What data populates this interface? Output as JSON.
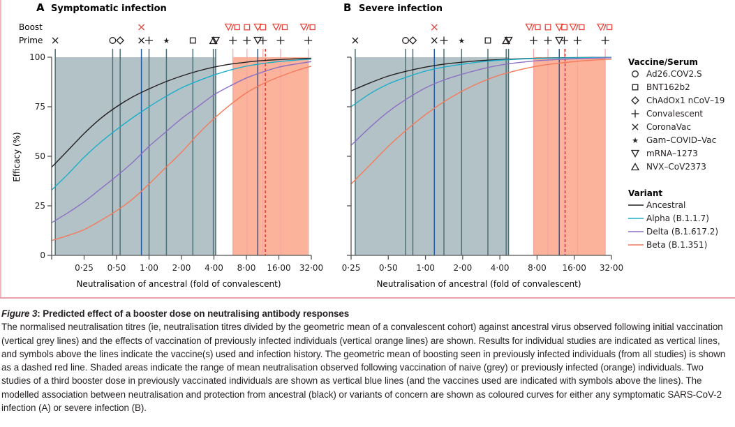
{
  "figure": {
    "caption_label": "Figure 3",
    "caption_title": ": Predicted effect of a booster dose on neutralising antibody responses",
    "caption_body": "The normalised neutralisation titres (ie, neutralisation titres divided by the geometric mean of a convalescent cohort) against ancestral virus observed following initial vaccination (vertical grey lines) and the effects of vaccination of previously infected individuals (vertical orange lines) are shown. Results for individual studies are indicated as vertical lines, and symbols above the lines indicate the vaccine(s) used and infection history. The geometric mean of boosting seen in previously infected individuals (from all studies) is shown as a dashed red line. Shaded areas indicate the range of mean neutralisation observed following vaccination of naive (grey) or previously infected (orange) individuals. Two studies of a third booster dose in previously vaccinated individuals are shown as vertical blue lines (and the vaccines used are indicated with symbols above the lines). The modelled association between neutralisation and protection from ancestral (black) or variants of concern are shown as coloured curves for either any symptomatic SARS-CoV-2 infection (A) or severe infection (B)."
  },
  "colors": {
    "ancestral": "#231f20",
    "alpha": "#1aaec9",
    "delta": "#8c6fc4",
    "beta": "#f47a5a",
    "grey_band": "#b3c2c6",
    "grey_line": "#4d6f78",
    "orange_band": "#fbb39c",
    "orange_line": "#f6a3a3",
    "blue_line": "#1f5aa6",
    "dashed_red": "#e8433a",
    "boost_symbol": "#e8433a"
  },
  "symbol_rows": {
    "boost_label": "Boost",
    "prime_label": "Prime"
  },
  "legend": {
    "vaccine_title": "Vaccine/Serum",
    "vaccines": [
      {
        "symbol": "circle",
        "label": "Ad26.COV2.S"
      },
      {
        "symbol": "square",
        "label": "BNT162b2"
      },
      {
        "symbol": "diamond",
        "label": "ChAdOx1 nCoV–19"
      },
      {
        "symbol": "plus",
        "label": "Convalescent"
      },
      {
        "symbol": "cross",
        "label": "CoronaVac"
      },
      {
        "symbol": "star",
        "label": "Gam–COVID–Vac"
      },
      {
        "symbol": "triangle-down",
        "label": "mRNA–1273"
      },
      {
        "symbol": "triangle-up",
        "label": "NVX–CoV2373"
      }
    ],
    "variant_title": "Variant",
    "variants": [
      {
        "key": "ancestral",
        "label": "Ancestral"
      },
      {
        "key": "alpha",
        "label": "Alpha (B.1.1.7)"
      },
      {
        "key": "delta",
        "label": "Delta (B.1.617.2)"
      },
      {
        "key": "beta",
        "label": "Beta (B.1.351)"
      }
    ]
  },
  "chart_data": [
    {
      "type": "line",
      "panel": "A",
      "title": "Symptomatic infection",
      "xlabel": "Neutralisation of ancestral (fold of convalescent)",
      "ylabel": "Efficacy (%)",
      "x_scale": "log2",
      "xlim": [
        0.125,
        32
      ],
      "ylim": [
        0,
        100
      ],
      "x_ticks": [
        0.25,
        0.5,
        1,
        2,
        4,
        8,
        16,
        32
      ],
      "x_tick_labels": [
        "0·25",
        "0·50",
        "1·00",
        "2·00",
        "4·00",
        "8·00",
        "16·00",
        "32·00"
      ],
      "y_ticks": [
        0,
        25,
        50,
        75,
        100
      ],
      "y_tick_labels": [
        "0",
        "25",
        "50",
        "75",
        "100"
      ],
      "grey_band": [
        0.135,
        4.2
      ],
      "orange_band": [
        6.0,
        30.0
      ],
      "dashed_mean": 12.0,
      "series": [
        {
          "name": "Ancestral",
          "key": "ancestral",
          "x": [
            0.125,
            0.177,
            0.25,
            0.354,
            0.5,
            0.707,
            1,
            1.41,
            2,
            2.83,
            4,
            5.66,
            8,
            11.3,
            16,
            22.6,
            32
          ],
          "values": [
            44.5,
            53,
            61.5,
            69,
            75,
            80,
            84,
            87.5,
            90.5,
            93,
            95,
            96.5,
            97.5,
            98.3,
            98.8,
            99.2,
            99.5
          ]
        },
        {
          "name": "Alpha (B.1.1.7)",
          "key": "alpha",
          "x": [
            0.125,
            0.177,
            0.25,
            0.354,
            0.5,
            0.707,
            1,
            1.41,
            2,
            2.83,
            4,
            5.66,
            8,
            11.3,
            16,
            22.6,
            32
          ],
          "values": [
            33,
            41,
            49.5,
            57,
            63.5,
            69.5,
            75,
            80,
            84.5,
            88,
            91,
            93.5,
            95.5,
            96.8,
            97.8,
            98.5,
            99
          ]
        },
        {
          "name": "Delta (B.1.617.2)",
          "key": "delta",
          "x": [
            0.125,
            0.177,
            0.25,
            0.354,
            0.5,
            0.707,
            1,
            1.41,
            2,
            2.83,
            4,
            5.66,
            8,
            11.3,
            16,
            22.6,
            32
          ],
          "values": [
            16.5,
            21.5,
            27,
            33.5,
            40,
            47,
            55,
            62,
            69,
            75,
            81,
            85.5,
            89.5,
            92.5,
            95,
            96.5,
            97.8
          ]
        },
        {
          "name": "Beta (B.1.351)",
          "key": "beta",
          "x": [
            0.125,
            0.177,
            0.25,
            0.354,
            0.5,
            0.707,
            1,
            1.41,
            2,
            2.83,
            4,
            5.66,
            8,
            11.3,
            16,
            22.6,
            32
          ],
          "values": [
            7.5,
            10,
            13,
            17.5,
            22.5,
            28.5,
            36,
            44,
            52,
            61,
            69,
            76,
            82,
            86.5,
            90,
            93,
            95.5
          ]
        }
      ],
      "study_lines": [
        {
          "x": 0.135,
          "kind": "grey",
          "prime": "cross",
          "boost": null
        },
        {
          "x": 0.46,
          "kind": "grey",
          "prime": "circle",
          "boost": null
        },
        {
          "x": 0.54,
          "kind": "grey",
          "prime": "diamond",
          "boost": null
        },
        {
          "x": 0.85,
          "kind": "blue",
          "prime": "cross",
          "boost": "cross"
        },
        {
          "x": 1.0,
          "kind": "grey",
          "prime": "plus",
          "boost": null
        },
        {
          "x": 1.45,
          "kind": "grey",
          "prime": "star",
          "boost": null
        },
        {
          "x": 2.55,
          "kind": "grey",
          "prime": "square",
          "boost": null
        },
        {
          "x": 3.95,
          "kind": "grey",
          "prime": "triangle-up",
          "boost": null
        },
        {
          "x": 4.15,
          "kind": "grey",
          "prime": "triangle-down",
          "boost": null
        },
        {
          "x": 6.0,
          "kind": "orange",
          "prime": "plus",
          "boost": "triangle-down/square"
        },
        {
          "x": 8.1,
          "kind": "orange",
          "prime": "plus",
          "boost": "square"
        },
        {
          "x": 10.2,
          "kind": "blue",
          "prime": "triangle-down",
          "boost": "triangle-down"
        },
        {
          "x": 11.4,
          "kind": "orange",
          "prime": "plus",
          "boost": "square"
        },
        {
          "x": 16.6,
          "kind": "orange",
          "prime": "plus",
          "boost": "triangle-down/square"
        },
        {
          "x": 30.0,
          "kind": "orange",
          "prime": "plus",
          "boost": "triangle-down/square"
        }
      ]
    },
    {
      "type": "line",
      "panel": "B",
      "title": "Severe infection",
      "xlabel": "Neutralisation of ancestral (fold of convalescent)",
      "ylabel": "",
      "x_scale": "log2",
      "xlim": [
        0.25,
        32
      ],
      "ylim": [
        0,
        100
      ],
      "x_ticks": [
        0.25,
        0.5,
        1,
        2,
        4,
        8,
        16,
        32
      ],
      "x_tick_labels": [
        "0·25",
        "0·50",
        "1·00",
        "2·00",
        "4·00",
        "8·00",
        "16·00",
        "32·00"
      ],
      "y_ticks": [
        0,
        25,
        50,
        75,
        100
      ],
      "y_tick_labels": [],
      "grey_band": [
        0.27,
        4.7
      ],
      "orange_band": [
        7.5,
        28.5
      ],
      "dashed_mean": 13.5,
      "series": [
        {
          "name": "Ancestral",
          "key": "ancestral",
          "x": [
            0.25,
            0.354,
            0.5,
            0.707,
            1,
            1.41,
            2,
            2.83,
            4,
            5.66,
            8,
            11.3,
            16,
            22.6,
            32
          ],
          "values": [
            83,
            87,
            90.5,
            93,
            95,
            96.5,
            97.5,
            98.3,
            98.8,
            99.2,
            99.5,
            99.7,
            99.8,
            99.9,
            99.9
          ]
        },
        {
          "name": "Alpha (B.1.1.7)",
          "key": "alpha",
          "x": [
            0.25,
            0.354,
            0.5,
            0.707,
            1,
            1.41,
            2,
            2.83,
            4,
            5.66,
            8,
            11.3,
            16,
            22.6,
            32
          ],
          "values": [
            75,
            81.5,
            86.5,
            90,
            93,
            95,
            96.5,
            97.7,
            98.5,
            99,
            99.4,
            99.6,
            99.7,
            99.8,
            99.9
          ]
        },
        {
          "name": "Delta (B.1.617.2)",
          "key": "delta",
          "x": [
            0.25,
            0.354,
            0.5,
            0.707,
            1,
            1.41,
            2,
            2.83,
            4,
            5.66,
            8,
            11.3,
            16,
            22.6,
            32
          ],
          "values": [
            55.5,
            64.5,
            72.5,
            79,
            84.5,
            88.5,
            91.5,
            94,
            96,
            97.3,
            98.2,
            98.8,
            99.2,
            99.5,
            99.7
          ]
        },
        {
          "name": "Beta (B.1.351)",
          "key": "beta",
          "x": [
            0.25,
            0.354,
            0.5,
            0.707,
            1,
            1.41,
            2,
            2.83,
            4,
            5.66,
            8,
            11.3,
            16,
            22.6,
            32
          ],
          "values": [
            36,
            45.5,
            55,
            63.5,
            71,
            77.5,
            83,
            87.5,
            91,
            93.5,
            95.5,
            96.8,
            97.8,
            98.5,
            99
          ]
        }
      ],
      "study_lines": [
        {
          "x": 0.27,
          "kind": "grey",
          "prime": "cross",
          "boost": null
        },
        {
          "x": 0.69,
          "kind": "grey",
          "prime": "circle",
          "boost": null
        },
        {
          "x": 0.79,
          "kind": "grey",
          "prime": "diamond",
          "boost": null
        },
        {
          "x": 1.18,
          "kind": "blue",
          "prime": "cross",
          "boost": "cross"
        },
        {
          "x": 1.41,
          "kind": "grey",
          "prime": "plus",
          "boost": null
        },
        {
          "x": 1.96,
          "kind": "grey",
          "prime": "star",
          "boost": null
        },
        {
          "x": 3.2,
          "kind": "grey",
          "prime": "square",
          "boost": null
        },
        {
          "x": 4.5,
          "kind": "grey",
          "prime": "triangle-up",
          "boost": null
        },
        {
          "x": 4.7,
          "kind": "grey",
          "prime": "triangle-down",
          "boost": null
        },
        {
          "x": 7.5,
          "kind": "orange",
          "prime": "plus",
          "boost": "triangle-down/square"
        },
        {
          "x": 9.8,
          "kind": "orange",
          "prime": "plus",
          "boost": "square"
        },
        {
          "x": 12.1,
          "kind": "blue",
          "prime": "triangle-down",
          "boost": "triangle-down"
        },
        {
          "x": 13.3,
          "kind": "orange",
          "prime": "plus",
          "boost": "square"
        },
        {
          "x": 17.0,
          "kind": "orange",
          "prime": "plus",
          "boost": "triangle-down/square"
        },
        {
          "x": 28.5,
          "kind": "orange",
          "prime": "plus",
          "boost": "triangle-down/square"
        }
      ]
    }
  ]
}
